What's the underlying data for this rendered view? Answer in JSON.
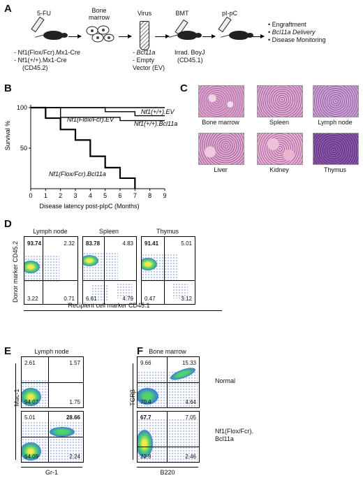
{
  "panels": [
    "A",
    "B",
    "C",
    "D",
    "E",
    "F"
  ],
  "panel_a": {
    "steps": [
      "5-FU",
      "Bone marrow",
      "Virus",
      "BMT",
      "pI-pC"
    ],
    "donor_lines": [
      "- Nf1(Flox/Fcr).Mx1-Cre",
      "- Nf1(+/+).Mx1-Cre",
      "(CD45.2)"
    ],
    "virus_lines": [
      "- Bcl11a",
      "- Empty",
      "Vector (EV)"
    ],
    "recipient_lines": [
      "Irrad. BoyJ",
      "(CD45.1)"
    ],
    "outcomes": [
      "• Engraftment",
      "• Bcl11a Delivery",
      "• Disease Monitoring"
    ]
  },
  "panel_b": {
    "ylabel": "Survival %",
    "xlabel": "Disease latency post-pIpC (Months)",
    "series_labels": [
      "Nf1(+/+).EV",
      "Nf1(Flox/Fcr).EV",
      "Nf1(+/+).Bcl11a",
      "Nf1(Flox/Fcr).Bcl11a"
    ]
  },
  "chart_data": {
    "type": "line",
    "title": "",
    "xlabel": "Disease latency post-pIpC (Months)",
    "ylabel": "Survival %",
    "xlim": [
      0,
      9
    ],
    "ylim": [
      0,
      100
    ],
    "xticks": [
      0,
      1,
      2,
      3,
      4,
      5,
      6,
      7,
      8,
      9
    ],
    "yticks": [
      50,
      100
    ],
    "series": [
      {
        "name": "Nf1(+/+).EV",
        "x": [
          0,
          9
        ],
        "y": [
          100,
          100
        ],
        "color": "#000000"
      },
      {
        "name": "Nf1(+/+).Bcl11a",
        "x": [
          0,
          5,
          5,
          7,
          7,
          9
        ],
        "y": [
          100,
          100,
          95,
          95,
          90,
          90
        ],
        "color": "#000000"
      },
      {
        "name": "Nf1(Flox/Fcr).EV",
        "x": [
          0,
          2,
          2,
          6,
          6,
          9
        ],
        "y": [
          100,
          100,
          88,
          88,
          84,
          84
        ],
        "color": "#000000"
      },
      {
        "name": "Nf1(Flox/Fcr).Bcl11a",
        "x": [
          0,
          1,
          1,
          2,
          2,
          3,
          3,
          4,
          4,
          5,
          5,
          6,
          6,
          7,
          7
        ],
        "y": [
          100,
          100,
          87,
          87,
          73,
          73,
          60,
          60,
          40,
          40,
          26,
          26,
          13,
          13,
          0
        ],
        "color": "#000000"
      }
    ]
  },
  "panel_c": {
    "tissues": [
      "Bone marrow",
      "Spleen",
      "Lymph node",
      "Liver",
      "Kidney",
      "Thymus"
    ]
  },
  "panel_d": {
    "ylabel": "Donor marker CD45.2",
    "xlabel": "Recipient cell marker CD45.1",
    "plots": [
      {
        "title": "Lymph node",
        "tl": "93.74",
        "tr": "2.32",
        "bl": "3.22",
        "br": "0.71"
      },
      {
        "title": "Spleen",
        "tl": "83.78",
        "tr": "4.83",
        "bl": "6.61",
        "br": "4.79"
      },
      {
        "title": "Thymus",
        "tl": "91.41",
        "tr": "5.01",
        "bl": "0.47",
        "br": "3.12"
      }
    ]
  },
  "panel_e": {
    "title": "Lymph node",
    "ylabel": "Mac-1",
    "xlabel": "Gr-1",
    "plots": [
      {
        "tl": "2.61",
        "tr": "1.57",
        "bl": "94.07",
        "br": "1.75"
      },
      {
        "tl": "5.01",
        "tr": "28.66",
        "bl": "64.09",
        "br": "2.24"
      }
    ]
  },
  "panel_f": {
    "title": "Bone marrow",
    "ylabel": "TCRβ",
    "xlabel": "B220",
    "plots": [
      {
        "tl": "9.66",
        "tr": "15.33",
        "bl": "70.4",
        "br": "4.64"
      },
      {
        "tl": "67.7",
        "tr": "7.05",
        "bl": "22.8",
        "br": "2.46"
      }
    ],
    "row_labels": [
      "Normal",
      "Nf1(Flox/Fcr).",
      "Bcl11a"
    ]
  }
}
